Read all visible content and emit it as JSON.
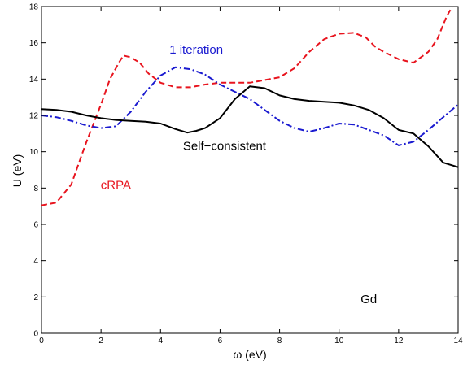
{
  "chart_data": {
    "type": "line",
    "title": "",
    "xlabel": "ω  (eV)",
    "ylabel": "U  (eV)",
    "xlim": [
      0,
      14
    ],
    "ylim": [
      0,
      18
    ],
    "xticks": [
      0,
      2,
      4,
      6,
      8,
      10,
      12,
      14
    ],
    "yticks": [
      0,
      2,
      4,
      6,
      8,
      10,
      12,
      14,
      16,
      18
    ],
    "grid": false,
    "series": [
      {
        "name": "cRPA",
        "color": "#e8141e",
        "style": "dashed",
        "x": [
          0,
          0.5,
          1.0,
          1.5,
          2.0,
          2.3,
          2.6,
          2.75,
          3.0,
          3.3,
          3.6,
          4.0,
          4.5,
          5.0,
          5.5,
          6.0,
          6.5,
          7.0,
          7.5,
          8.0,
          8.5,
          9.0,
          9.5,
          10.0,
          10.5,
          10.9,
          11.2,
          11.5,
          12.0,
          12.5,
          13.0,
          13.3,
          13.6,
          13.8
        ],
        "y": [
          7.05,
          7.2,
          8.2,
          10.5,
          12.6,
          14.0,
          14.9,
          15.3,
          15.2,
          14.9,
          14.3,
          13.8,
          13.55,
          13.55,
          13.7,
          13.8,
          13.8,
          13.8,
          13.95,
          14.1,
          14.6,
          15.5,
          16.2,
          16.5,
          16.55,
          16.3,
          15.8,
          15.5,
          15.1,
          14.9,
          15.5,
          16.2,
          17.4,
          18.0
        ]
      },
      {
        "name": "1 iteration",
        "color": "#1a1ad0",
        "style": "dashdot",
        "x": [
          0,
          0.5,
          1.0,
          1.5,
          2.0,
          2.5,
          3.0,
          3.5,
          4.0,
          4.5,
          5.0,
          5.5,
          6.0,
          6.5,
          7.0,
          7.5,
          8.0,
          8.5,
          9.0,
          9.5,
          10.0,
          10.5,
          11.0,
          11.5,
          12.0,
          12.5,
          13.0,
          13.5,
          14.0
        ],
        "y": [
          12.0,
          11.9,
          11.7,
          11.45,
          11.3,
          11.4,
          12.2,
          13.3,
          14.2,
          14.65,
          14.55,
          14.25,
          13.7,
          13.3,
          12.9,
          12.3,
          11.7,
          11.3,
          11.1,
          11.3,
          11.55,
          11.5,
          11.2,
          10.9,
          10.35,
          10.55,
          11.2,
          11.9,
          12.6
        ]
      },
      {
        "name": "Self-consistent",
        "color": "#000000",
        "style": "solid",
        "x": [
          0,
          0.5,
          1.0,
          1.5,
          2.0,
          2.5,
          3.0,
          3.5,
          4.0,
          4.5,
          4.9,
          5.2,
          5.5,
          6.0,
          6.5,
          7.0,
          7.5,
          8.0,
          8.5,
          9.0,
          9.5,
          10.0,
          10.5,
          11.0,
          11.5,
          12.0,
          12.5,
          13.0,
          13.5,
          14.0
        ],
        "y": [
          12.35,
          12.3,
          12.2,
          12.0,
          11.85,
          11.75,
          11.7,
          11.65,
          11.55,
          11.25,
          11.05,
          11.15,
          11.3,
          11.85,
          12.9,
          13.6,
          13.5,
          13.1,
          12.9,
          12.8,
          12.75,
          12.7,
          12.55,
          12.3,
          11.85,
          11.2,
          11.0,
          10.3,
          9.4,
          9.15
        ]
      }
    ],
    "annotations": [
      {
        "text": "1 iteration",
        "x": 5.2,
        "y": 15.4,
        "color": "#1a1ad0",
        "series": "1 iteration"
      },
      {
        "text": "Self−consistent",
        "x": 6.15,
        "y": 10.1,
        "color": "#000000",
        "series": "Self-consistent"
      },
      {
        "text": "cRPA",
        "x": 2.5,
        "y": 7.95,
        "color": "#e8141e",
        "series": "cRPA"
      },
      {
        "text": "Gd",
        "x": 11.0,
        "y": 1.65,
        "color": "#000000",
        "series": null
      }
    ]
  }
}
